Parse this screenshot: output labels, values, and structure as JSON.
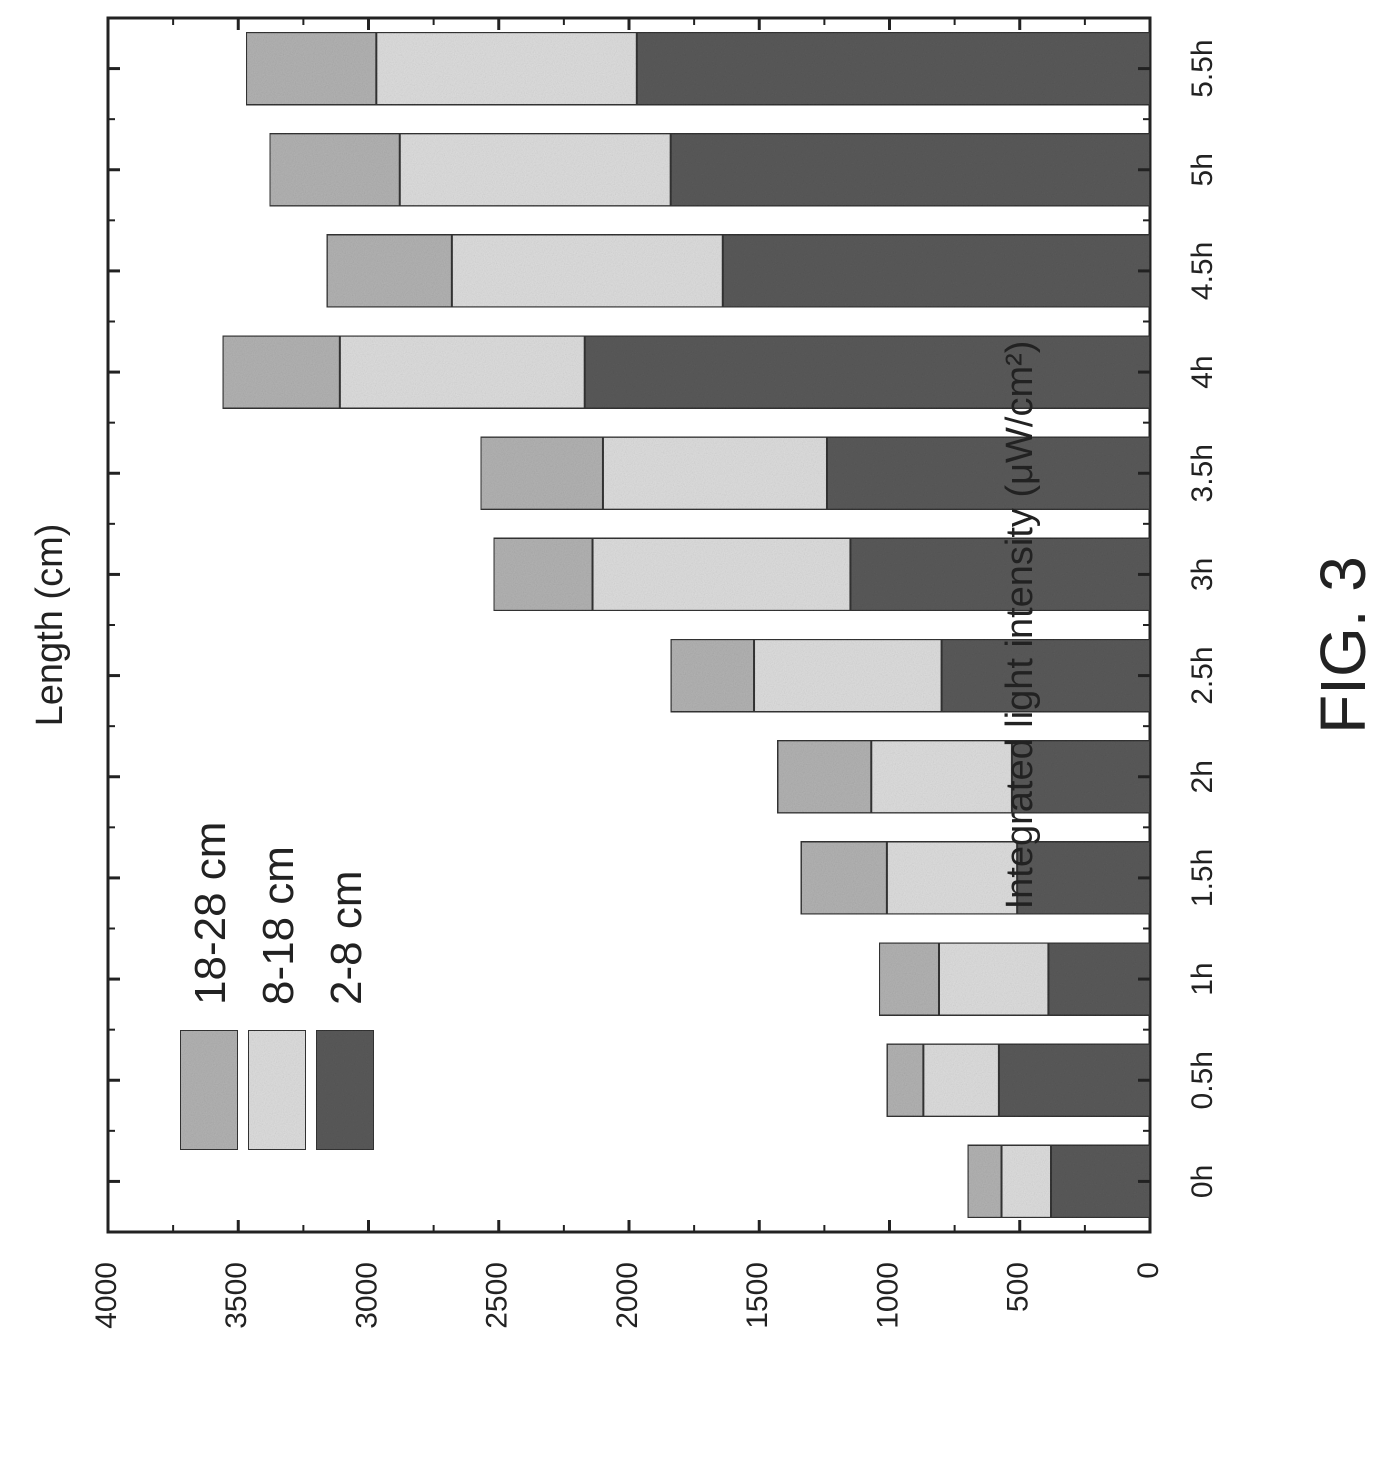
{
  "figure_label": "FIG. 3",
  "chart_data": {
    "type": "bar",
    "stacked": true,
    "orientation": "rotated-90-clockwise",
    "categories": [
      "0h",
      "0.5h",
      "1h",
      "1.5h",
      "2h",
      "2.5h",
      "3h",
      "3.5h",
      "4h",
      "4.5h",
      "5h",
      "5.5h"
    ],
    "series": [
      {
        "name": "2-8 cm",
        "values": [
          380,
          580,
          390,
          510,
          530,
          800,
          1150,
          1240,
          2170,
          1640,
          1840,
          1970
        ],
        "color": "#5a5a5a"
      },
      {
        "name": "8-18 cm",
        "values": [
          190,
          290,
          420,
          500,
          540,
          720,
          990,
          860,
          940,
          1040,
          1040,
          1000
        ],
        "color": "#dedede"
      },
      {
        "name": "18-28 cm",
        "values": [
          130,
          140,
          230,
          330,
          360,
          320,
          380,
          470,
          450,
          480,
          500,
          500
        ],
        "color": "#b3b3b3"
      }
    ],
    "title": "Length (cm)",
    "ylabel": "Integrated light intensity (μW/cm²)",
    "xlabel": "",
    "ylim": [
      0,
      4000
    ],
    "yticks": [
      "0",
      "500",
      "1000",
      "1500",
      "2000",
      "2500",
      "3000",
      "3500",
      "4000"
    ],
    "legend_position": "top-left",
    "grid": false
  }
}
